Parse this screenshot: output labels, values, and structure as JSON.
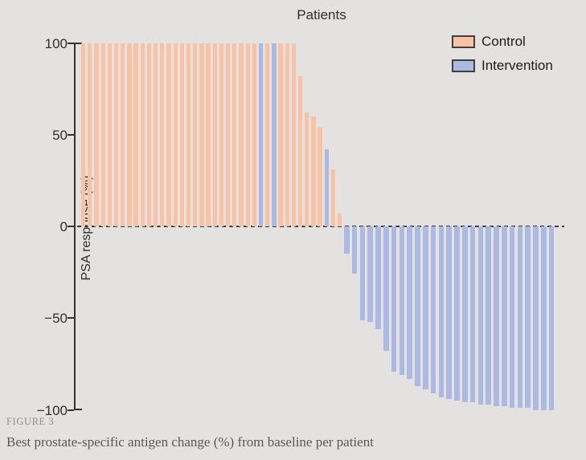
{
  "title": "Patients",
  "ylabel": "PSA response (%)",
  "figure_label": "FIGURE 3",
  "caption": "Best prostate-specific antigen change (%) from baseline per patient",
  "colors": {
    "background": "#e3e2e0",
    "control": "#f9c2a5",
    "intervention": "#abb9e3",
    "axis": "#333333",
    "caption_text": "#58585a",
    "figure_label_text": "#8f8f8c"
  },
  "legend": {
    "position": "top-right",
    "items": [
      {
        "label": "Control",
        "color": "#f9c2a5"
      },
      {
        "label": "Intervention",
        "color": "#abb9e3"
      }
    ]
  },
  "chart_data": {
    "type": "bar",
    "title": "Patients",
    "xlabel": "Patients",
    "ylabel": "PSA response (%)",
    "ylim": [
      -100,
      100
    ],
    "grid": false,
    "zero_line": "dashed",
    "yticks": [
      {
        "value": 100,
        "label": "100"
      },
      {
        "value": 50,
        "label": "50"
      },
      {
        "value": 0,
        "label": "0"
      },
      {
        "value": -50,
        "label": "−50"
      },
      {
        "value": -100,
        "label": "−100"
      }
    ],
    "series_names": [
      "Control",
      "Intervention"
    ],
    "bars": [
      {
        "value": 100,
        "group": "Control"
      },
      {
        "value": 100,
        "group": "Control"
      },
      {
        "value": 100,
        "group": "Control"
      },
      {
        "value": 100,
        "group": "Control"
      },
      {
        "value": 100,
        "group": "Control"
      },
      {
        "value": 100,
        "group": "Control"
      },
      {
        "value": 100,
        "group": "Control"
      },
      {
        "value": 100,
        "group": "Control"
      },
      {
        "value": 100,
        "group": "Control"
      },
      {
        "value": 100,
        "group": "Control"
      },
      {
        "value": 100,
        "group": "Control"
      },
      {
        "value": 100,
        "group": "Control"
      },
      {
        "value": 100,
        "group": "Control"
      },
      {
        "value": 100,
        "group": "Control"
      },
      {
        "value": 100,
        "group": "Control"
      },
      {
        "value": 100,
        "group": "Control"
      },
      {
        "value": 100,
        "group": "Control"
      },
      {
        "value": 100,
        "group": "Control"
      },
      {
        "value": 100,
        "group": "Control"
      },
      {
        "value": 100,
        "group": "Control"
      },
      {
        "value": 100,
        "group": "Control"
      },
      {
        "value": 100,
        "group": "Control"
      },
      {
        "value": 100,
        "group": "Control"
      },
      {
        "value": 100,
        "group": "Control"
      },
      {
        "value": 100,
        "group": "Control"
      },
      {
        "value": 100,
        "group": "Control"
      },
      {
        "value": 100,
        "group": "Control"
      },
      {
        "value": 100,
        "group": "Intervention"
      },
      {
        "value": 100,
        "group": "Control"
      },
      {
        "value": 100,
        "group": "Intervention"
      },
      {
        "value": 100,
        "group": "Control"
      },
      {
        "value": 100,
        "group": "Control"
      },
      {
        "value": 100,
        "group": "Control"
      },
      {
        "value": 82,
        "group": "Control"
      },
      {
        "value": 62,
        "group": "Control"
      },
      {
        "value": 60,
        "group": "Control"
      },
      {
        "value": 54,
        "group": "Control"
      },
      {
        "value": 42,
        "group": "Intervention"
      },
      {
        "value": 31,
        "group": "Control"
      },
      {
        "value": 7,
        "group": "Control"
      },
      {
        "value": -15,
        "group": "Intervention"
      },
      {
        "value": -26,
        "group": "Intervention"
      },
      {
        "value": -51,
        "group": "Intervention"
      },
      {
        "value": -52,
        "group": "Intervention"
      },
      {
        "value": -56,
        "group": "Intervention"
      },
      {
        "value": -68,
        "group": "Intervention"
      },
      {
        "value": -79,
        "group": "Intervention"
      },
      {
        "value": -81,
        "group": "Intervention"
      },
      {
        "value": -83,
        "group": "Intervention"
      },
      {
        "value": -87,
        "group": "Intervention"
      },
      {
        "value": -89,
        "group": "Intervention"
      },
      {
        "value": -91,
        "group": "Intervention"
      },
      {
        "value": -93,
        "group": "Intervention"
      },
      {
        "value": -94,
        "group": "Intervention"
      },
      {
        "value": -95,
        "group": "Intervention"
      },
      {
        "value": -96,
        "group": "Intervention"
      },
      {
        "value": -96,
        "group": "Intervention"
      },
      {
        "value": -97,
        "group": "Intervention"
      },
      {
        "value": -97,
        "group": "Intervention"
      },
      {
        "value": -98,
        "group": "Intervention"
      },
      {
        "value": -98,
        "group": "Intervention"
      },
      {
        "value": -99,
        "group": "Intervention"
      },
      {
        "value": -99,
        "group": "Intervention"
      },
      {
        "value": -99,
        "group": "Intervention"
      },
      {
        "value": -100,
        "group": "Intervention"
      },
      {
        "value": -100,
        "group": "Intervention"
      },
      {
        "value": -100,
        "group": "Intervention"
      }
    ]
  }
}
